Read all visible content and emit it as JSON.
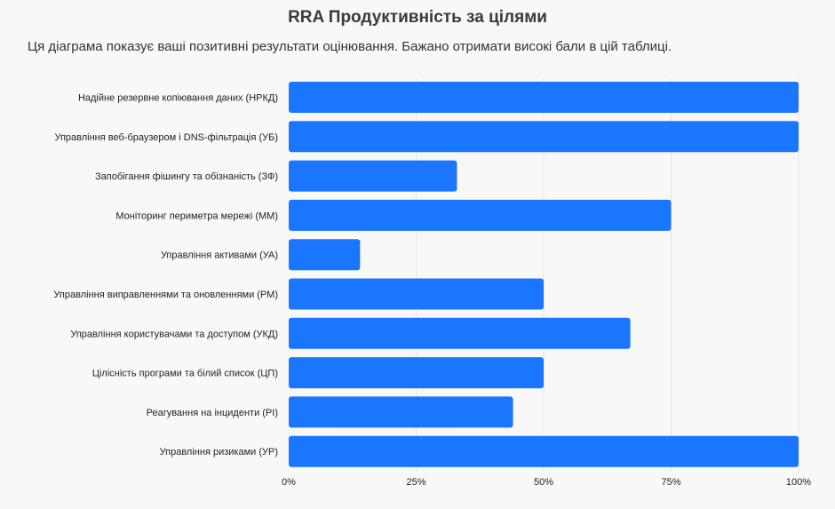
{
  "title": "RRA Продуктивність за цілями",
  "subtitle": "Ця діаграма показує ваші позитивні результати оцінювання. Бажано отримати високі бали в цій таблиці.",
  "chart_data": {
    "type": "bar",
    "orientation": "horizontal",
    "categories": [
      "Надійне резервне копіювання даних (НРКД)",
      "Управління веб-браузером і DNS-фільтрація (УБ)",
      "Запобігання фішингу та обізнаність (ЗФ)",
      "Моніторинг периметра мережі (ММ)",
      "Управління активами (УА)",
      "Управління виправленнями та оновленнями (РМ)",
      "Управління користувачами та доступом (УКД)",
      "Цілісність програми та білий список (ЦП)",
      "Реагування на інциденти (РІ)",
      "Управління ризиками (УР)"
    ],
    "values": [
      100,
      100,
      33,
      75,
      14,
      50,
      67,
      50,
      44,
      100
    ],
    "xlim": [
      0,
      100
    ],
    "ticks": [
      0,
      25,
      50,
      75,
      100
    ],
    "tick_labels": [
      "0%",
      "25%",
      "50%",
      "75%",
      "100%"
    ],
    "bar_color": "#1a75ff",
    "grid_color": "#e3e3e3",
    "grid": true,
    "legend": false
  }
}
